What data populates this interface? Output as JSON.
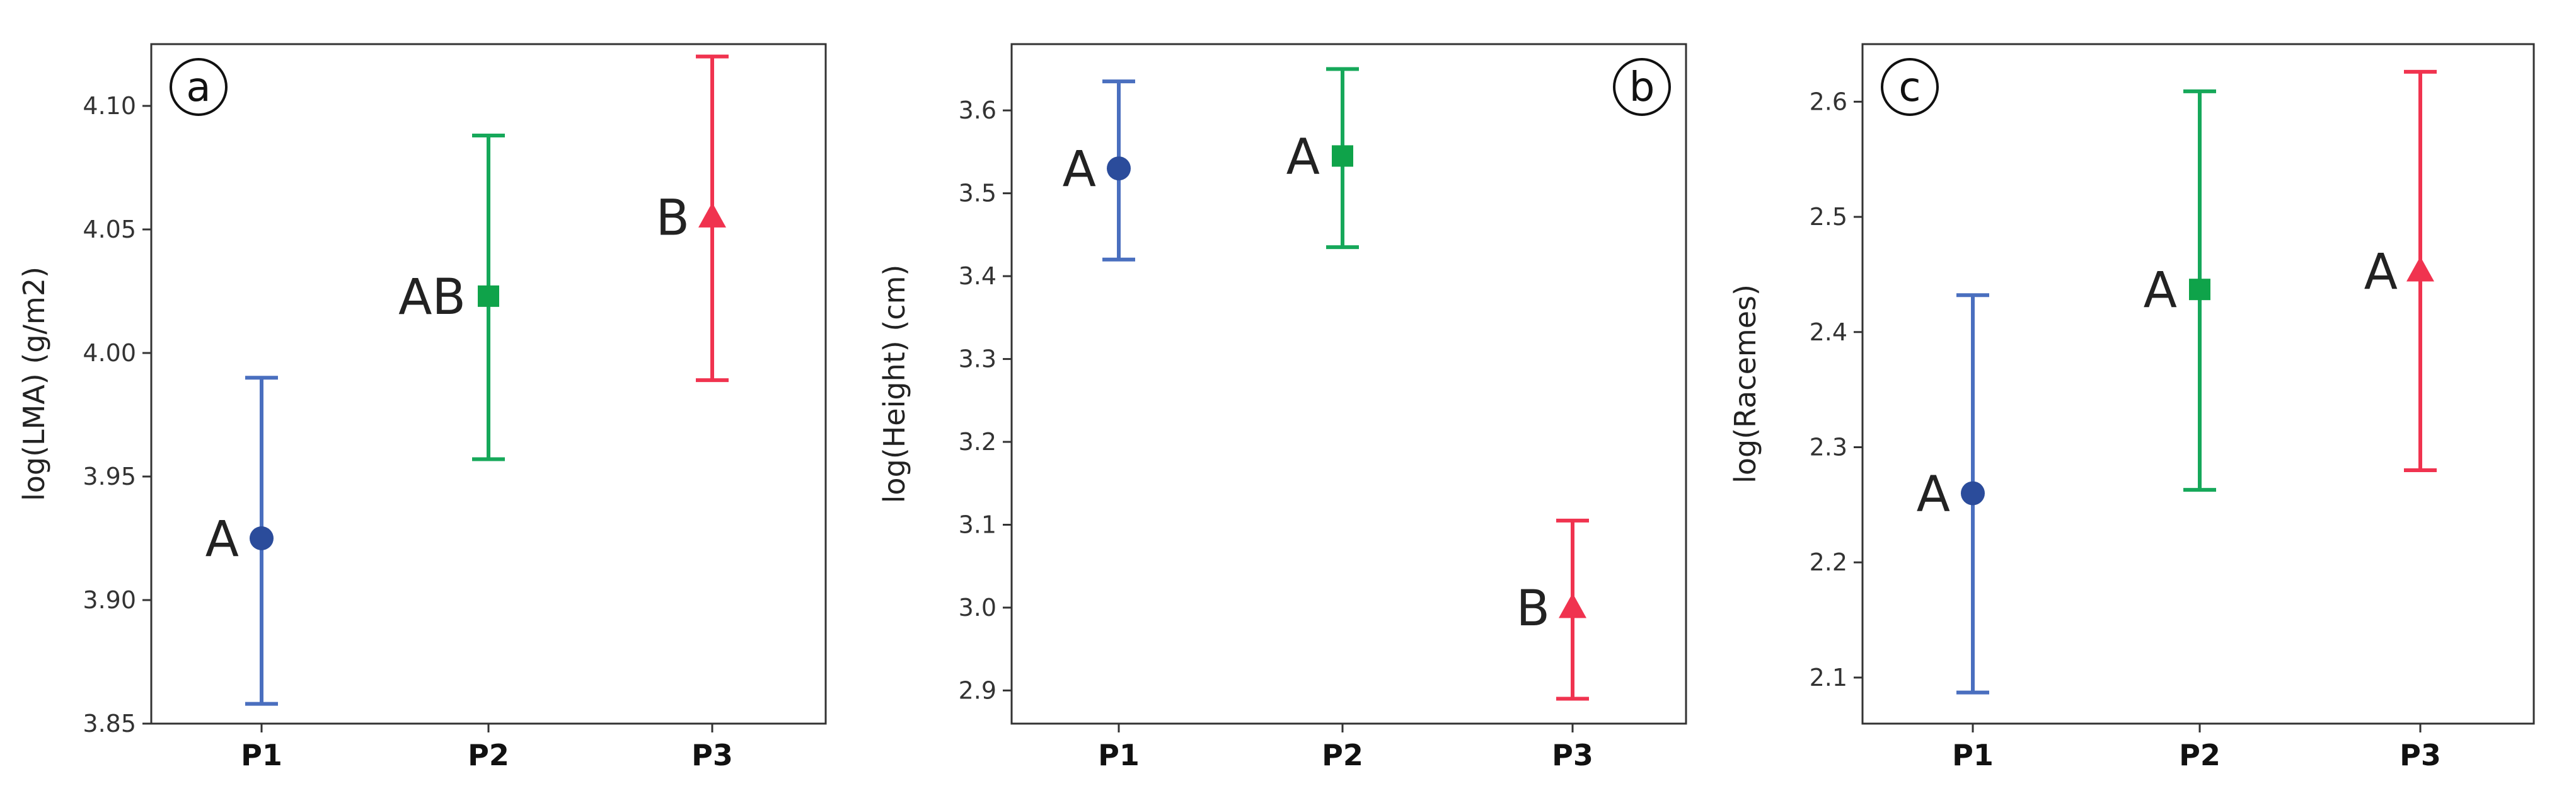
{
  "chart_data": [
    {
      "type": "scatter",
      "panel_label": "a",
      "ylabel": "log(LMA) (g/m2)",
      "categories": [
        "P1",
        "P2",
        "P3"
      ],
      "ylim": [
        3.85,
        4.125
      ],
      "yticks": [
        3.85,
        3.9,
        3.95,
        4.0,
        4.05,
        4.1
      ],
      "ytick_labels": [
        "3.85",
        "3.90",
        "3.95",
        "4.00",
        "4.05",
        "4.10"
      ],
      "grid": false,
      "points": [
        {
          "category": "P1",
          "mean": 3.925,
          "lower": 3.858,
          "upper": 3.99,
          "group": "A",
          "marker": "circle",
          "color": "#2b4c9b",
          "bar_color": "#4a6fbf"
        },
        {
          "category": "P2",
          "mean": 4.023,
          "lower": 3.957,
          "upper": 4.088,
          "group": "AB",
          "marker": "square",
          "color": "#0fa34a",
          "bar_color": "#16a85a"
        },
        {
          "category": "P3",
          "mean": 4.055,
          "lower": 3.989,
          "upper": 4.12,
          "group": "B",
          "marker": "triangle",
          "color": "#f0334f",
          "bar_color": "#f0334f"
        }
      ]
    },
    {
      "type": "scatter",
      "panel_label": "b",
      "ylabel": "log(Height) (cm)",
      "categories": [
        "P1",
        "P2",
        "P3"
      ],
      "ylim": [
        2.86,
        3.68
      ],
      "yticks": [
        2.9,
        3.0,
        3.1,
        3.2,
        3.3,
        3.4,
        3.5,
        3.6
      ],
      "ytick_labels": [
        "2.9",
        "3.0",
        "3.1",
        "3.2",
        "3.3",
        "3.4",
        "3.5",
        "3.6"
      ],
      "grid": false,
      "points": [
        {
          "category": "P1",
          "mean": 3.53,
          "lower": 3.42,
          "upper": 3.635,
          "group": "A",
          "marker": "circle",
          "color": "#2b4c9b",
          "bar_color": "#4a6fbf"
        },
        {
          "category": "P2",
          "mean": 3.545,
          "lower": 3.435,
          "upper": 3.65,
          "group": "A",
          "marker": "square",
          "color": "#0fa34a",
          "bar_color": "#16a85a"
        },
        {
          "category": "P3",
          "mean": 3.0,
          "lower": 2.89,
          "upper": 3.105,
          "group": "B",
          "marker": "triangle",
          "color": "#f0334f",
          "bar_color": "#f0334f"
        }
      ]
    },
    {
      "type": "scatter",
      "panel_label": "c",
      "ylabel": "log(Racemes)",
      "categories": [
        "P1",
        "P2",
        "P3"
      ],
      "ylim": [
        2.06,
        2.65
      ],
      "yticks": [
        2.1,
        2.2,
        2.3,
        2.4,
        2.5,
        2.6
      ],
      "ytick_labels": [
        "2.1",
        "2.2",
        "2.3",
        "2.4",
        "2.5",
        "2.6"
      ],
      "grid": false,
      "points": [
        {
          "category": "P1",
          "mean": 2.26,
          "lower": 2.087,
          "upper": 2.432,
          "group": "A",
          "marker": "circle",
          "color": "#2b4c9b",
          "bar_color": "#4a6fbf"
        },
        {
          "category": "P2",
          "mean": 2.437,
          "lower": 2.263,
          "upper": 2.609,
          "group": "A",
          "marker": "square",
          "color": "#0fa34a",
          "bar_color": "#16a85a"
        },
        {
          "category": "P3",
          "mean": 2.453,
          "lower": 2.28,
          "upper": 2.626,
          "group": "A",
          "marker": "triangle",
          "color": "#f0334f",
          "bar_color": "#f0334f"
        }
      ]
    }
  ]
}
